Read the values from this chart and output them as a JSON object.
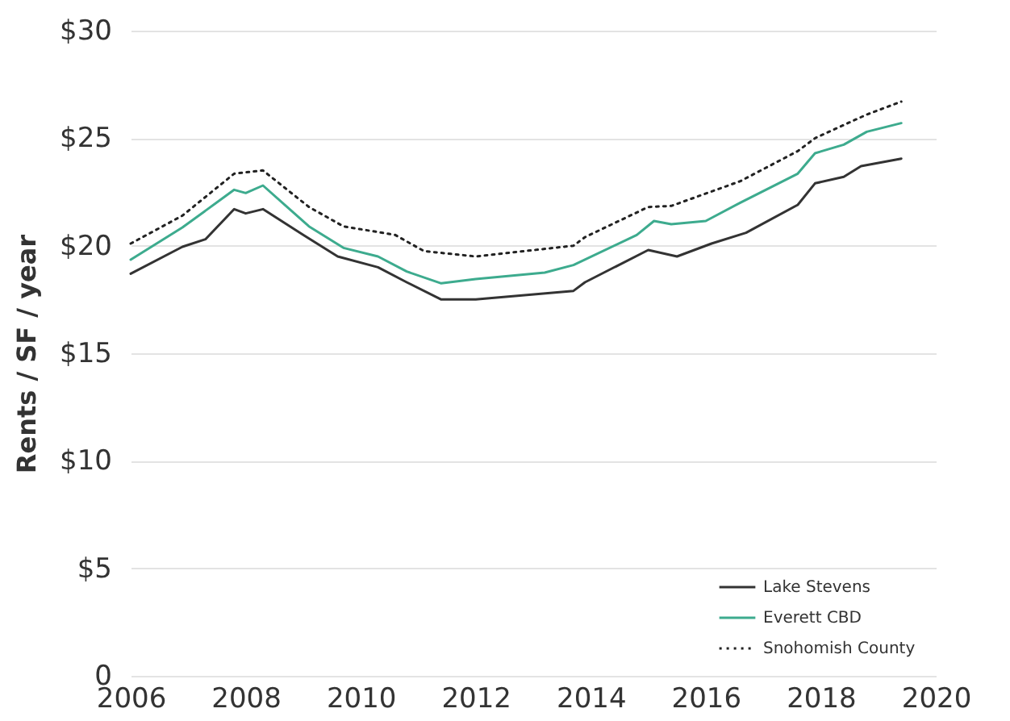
{
  "chart_data": {
    "type": "line",
    "ylabel": "Rents / SF / year",
    "series": [
      {
        "name": "Lake Stevens",
        "color": "#333333",
        "line_style": "solid",
        "x": [
          2006.0,
          2006.9,
          2007.3,
          2007.8,
          2008.0,
          2008.3,
          2009.0,
          2009.6,
          2010.3,
          2010.8,
          2011.4,
          2012.0,
          2012.2,
          2013.7,
          2013.9,
          2015.0,
          2015.5,
          2016.1,
          2016.7,
          2017.6,
          2017.9,
          2018.4,
          2018.7,
          2019.4
        ],
        "values": [
          18.7,
          19.95,
          20.3,
          21.7,
          21.5,
          21.7,
          20.5,
          19.5,
          19.0,
          18.3,
          17.5,
          17.5,
          17.55,
          17.9,
          18.3,
          19.8,
          19.5,
          20.1,
          20.6,
          21.9,
          22.9,
          23.2,
          23.7,
          24.05
        ]
      },
      {
        "name": "Everett CBD",
        "color": "#3dab8e",
        "line_style": "solid",
        "x": [
          2006.0,
          2006.9,
          2007.8,
          2008.0,
          2008.3,
          2009.1,
          2009.7,
          2010.3,
          2010.8,
          2011.4,
          2012.0,
          2013.2,
          2013.7,
          2014.8,
          2015.1,
          2015.4,
          2016.0,
          2016.6,
          2017.6,
          2017.9,
          2018.4,
          2018.8,
          2019.4
        ],
        "values": [
          19.35,
          20.85,
          22.6,
          22.45,
          22.8,
          20.9,
          19.9,
          19.5,
          18.8,
          18.25,
          18.45,
          18.75,
          19.1,
          20.5,
          21.15,
          21.0,
          21.15,
          22.0,
          23.35,
          24.3,
          24.7,
          25.3,
          25.7
        ]
      },
      {
        "name": "Snohomish County",
        "color": "#222222",
        "line_style": "dotted",
        "x": [
          2006.0,
          2006.9,
          2007.8,
          2008.3,
          2009.1,
          2009.7,
          2010.6,
          2011.1,
          2012.0,
          2013.7,
          2013.9,
          2015.0,
          2015.4,
          2016.6,
          2017.6,
          2017.9,
          2018.8,
          2019.4
        ],
        "values": [
          20.1,
          21.4,
          23.35,
          23.5,
          21.8,
          20.9,
          20.5,
          19.75,
          19.5,
          20.0,
          20.4,
          21.8,
          21.85,
          23.0,
          24.4,
          25.0,
          26.1,
          26.7
        ]
      }
    ],
    "xlim": [
      2006,
      2020
    ],
    "xticks": [
      2006,
      2008,
      2010,
      2012,
      2014,
      2016,
      2018,
      2020
    ],
    "ylim": [
      0,
      30
    ],
    "yticks": [
      0,
      {
        "value": 5,
        "label": "$5"
      },
      {
        "value": 10,
        "label": "$10"
      },
      {
        "value": 15,
        "label": "$15"
      },
      {
        "value": 20,
        "label": "$20"
      },
      {
        "value": 25,
        "label": "$25"
      },
      {
        "value": 30,
        "label": "$30"
      }
    ],
    "grid": "y",
    "legend": "bottom right",
    "marker": "none"
  }
}
